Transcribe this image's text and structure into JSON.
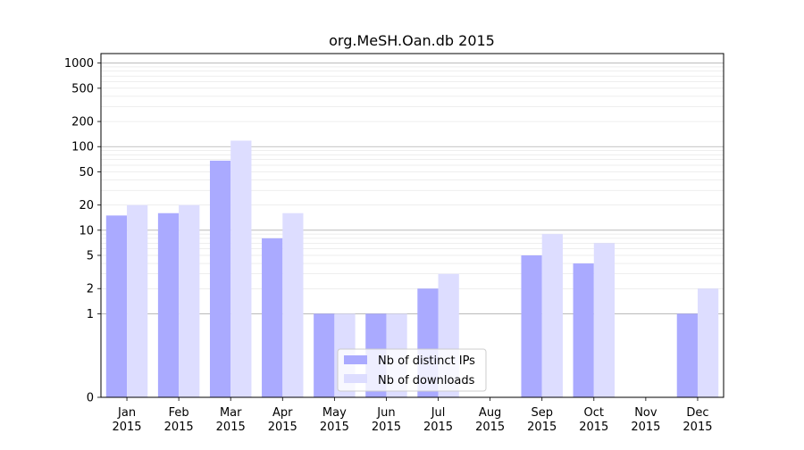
{
  "chart_data": {
    "type": "bar",
    "title": "org.MeSH.Oan.db 2015",
    "xlabel": "",
    "ylabel": "",
    "yscale": "symlog",
    "ylim": [
      0,
      1300
    ],
    "yticks": [
      0,
      1,
      2,
      5,
      10,
      20,
      50,
      100,
      200,
      500,
      1000
    ],
    "ytick_labels": [
      "0",
      "1",
      "2",
      "5",
      "10",
      "20",
      "50",
      "100",
      "200",
      "500",
      "1000"
    ],
    "grid": true,
    "legend_position": "bottom-center",
    "categories": [
      {
        "month": "Jan",
        "year": "2015"
      },
      {
        "month": "Feb",
        "year": "2015"
      },
      {
        "month": "Mar",
        "year": "2015"
      },
      {
        "month": "Apr",
        "year": "2015"
      },
      {
        "month": "May",
        "year": "2015"
      },
      {
        "month": "Jun",
        "year": "2015"
      },
      {
        "month": "Jul",
        "year": "2015"
      },
      {
        "month": "Aug",
        "year": "2015"
      },
      {
        "month": "Sep",
        "year": "2015"
      },
      {
        "month": "Oct",
        "year": "2015"
      },
      {
        "month": "Nov",
        "year": "2015"
      },
      {
        "month": "Dec",
        "year": "2015"
      }
    ],
    "series": [
      {
        "name": "Nb of distinct IPs",
        "color": "#aaaaff",
        "values": [
          15,
          16,
          68,
          8,
          1,
          1,
          2,
          0,
          5,
          4,
          0,
          1
        ]
      },
      {
        "name": "Nb of downloads",
        "color": "#ddddff",
        "values": [
          20,
          20,
          118,
          16,
          1,
          1,
          3,
          0,
          9,
          7,
          0,
          2
        ]
      }
    ]
  }
}
